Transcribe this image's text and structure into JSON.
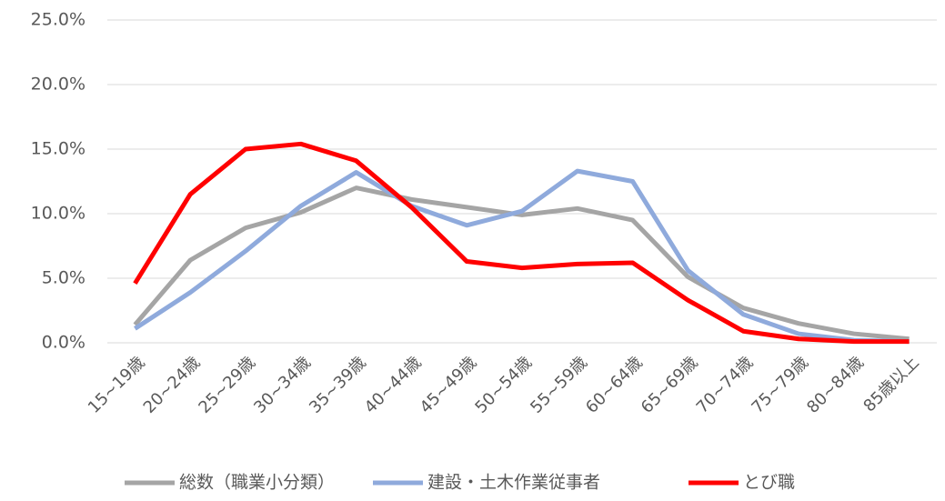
{
  "chart_data": {
    "type": "line",
    "categories": [
      "15~19歳",
      "20~24歳",
      "25~29歳",
      "30~34歳",
      "35~39歳",
      "40~44歳",
      "45~49歳",
      "50~54歳",
      "55~59歳",
      "60~64歳",
      "65~69歳",
      "70~74歳",
      "75~79歳",
      "80~84歳",
      "85歳以上"
    ],
    "series": [
      {
        "name": "総数（職業小分類）",
        "color": "#a5a5a5",
        "values": [
          1.4,
          6.4,
          8.9,
          10.1,
          12.0,
          11.1,
          10.5,
          9.9,
          10.4,
          9.5,
          5.1,
          2.7,
          1.5,
          0.7,
          0.3
        ]
      },
      {
        "name": "建設・土木作業従事者",
        "color": "#8faadc",
        "values": [
          1.1,
          3.9,
          7.1,
          10.6,
          13.2,
          10.6,
          9.1,
          10.2,
          13.3,
          12.5,
          5.6,
          2.2,
          0.7,
          0.2,
          0.1
        ]
      },
      {
        "name": "とび職",
        "color": "#ff0000",
        "values": [
          4.6,
          11.5,
          15.0,
          15.4,
          14.1,
          10.5,
          6.3,
          5.8,
          6.1,
          6.2,
          3.3,
          0.9,
          0.3,
          0.1,
          0.1
        ]
      }
    ],
    "ylim": [
      0,
      25
    ],
    "yticks": [
      {
        "value": 0,
        "label": "0.0%"
      },
      {
        "value": 5,
        "label": "5.0%"
      },
      {
        "value": 10,
        "label": "10.0%"
      },
      {
        "value": 15,
        "label": "15.0%"
      },
      {
        "value": 20,
        "label": "20.0%"
      },
      {
        "value": 25,
        "label": "25.0%"
      }
    ],
    "grid": true,
    "legend": "bottom"
  }
}
